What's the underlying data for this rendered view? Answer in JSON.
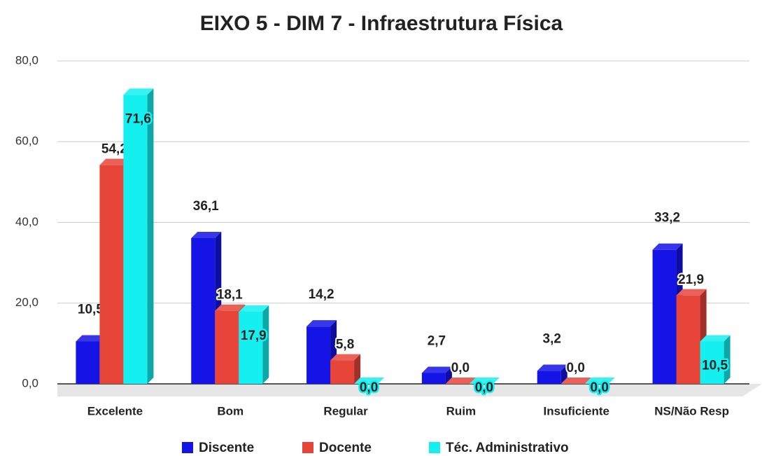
{
  "chart_data": {
    "type": "bar3d",
    "title": "EIXO 5 - DIM 7 - Infraestrutura Física",
    "categories": [
      "Excelente",
      "Bom",
      "Regular",
      "Ruim",
      "Insuficiente",
      "NS/Não Resp"
    ],
    "series": [
      {
        "name": "Discente",
        "color": "#1414e6",
        "values": [
          10.5,
          36.1,
          14.2,
          2.7,
          3.2,
          33.2
        ],
        "value_labels": [
          "10,5",
          "36,1",
          "14,2",
          "2,7",
          "3,2",
          "33,2"
        ]
      },
      {
        "name": "Docente",
        "color": "#e8453a",
        "values": [
          54.2,
          18.1,
          5.8,
          0.0,
          0.0,
          21.9
        ],
        "value_labels": [
          "54,2",
          "18,1",
          "5,8",
          "0,0",
          "0,0",
          "21,9"
        ]
      },
      {
        "name": "Téc. Administrativo",
        "color": "#14f0f0",
        "values": [
          71.6,
          17.9,
          0.0,
          0.0,
          0.0,
          10.5
        ],
        "value_labels": [
          "71,6",
          "17,9",
          "0,0",
          "0,0",
          "0,0",
          "10,5"
        ]
      }
    ],
    "ylim": [
      0,
      80
    ],
    "yticks": [
      {
        "value": 0,
        "label": "0,0"
      },
      {
        "value": 20,
        "label": "20,0"
      },
      {
        "value": 40,
        "label": "40,0"
      },
      {
        "value": 60,
        "label": "60,0"
      },
      {
        "value": 80,
        "label": "80,0"
      }
    ],
    "grid": true,
    "legend": "bottom"
  }
}
